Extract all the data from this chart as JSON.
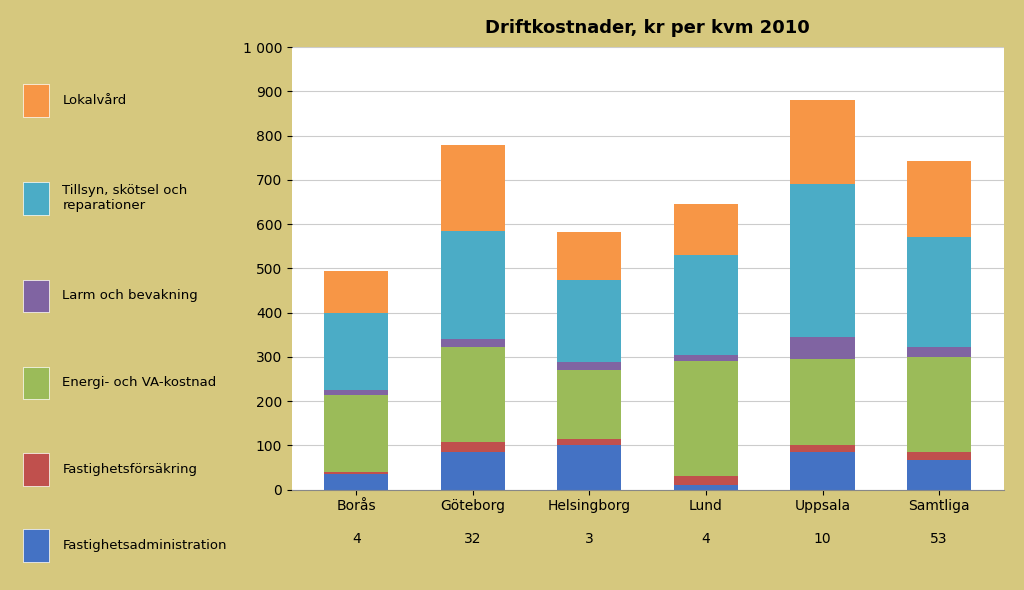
{
  "title": "Driftkostnader, kr per kvm 2010",
  "categories": [
    "Borås",
    "Göteborg",
    "Helsingborg",
    "Lund",
    "Uppsala",
    "Samtliga"
  ],
  "subcategories": [
    "4",
    "32",
    "3",
    "4",
    "10",
    "53"
  ],
  "series": {
    "Fastighetsadministration": [
      35,
      85,
      100,
      10,
      85,
      68
    ],
    "Fastighetsförsäkring": [
      5,
      22,
      15,
      20,
      15,
      18
    ],
    "Energi- och VA-kostnad": [
      175,
      215,
      155,
      260,
      195,
      215
    ],
    "Larm och bevakning": [
      10,
      18,
      18,
      15,
      50,
      22
    ],
    "Tillsyn, skötsel och reparationer": [
      175,
      245,
      185,
      225,
      345,
      247
    ],
    "Lokalvård": [
      95,
      195,
      110,
      115,
      190,
      172
    ]
  },
  "colors": {
    "Fastighetsadministration": "#4472C4",
    "Fastighetsförsäkring": "#C0504D",
    "Energi- och VA-kostnad": "#9BBB59",
    "Larm och bevakning": "#8064A2",
    "Tillsyn, skötsel och reparationer": "#4BACC6",
    "Lokalvård": "#F79646"
  },
  "background_color": "#D6C87E",
  "plot_background": "#FFFFFF",
  "legend_background": "#FFFFFF",
  "ylim": [
    0,
    1000
  ],
  "yticks": [
    0,
    100,
    200,
    300,
    400,
    500,
    600,
    700,
    800,
    900,
    1000
  ],
  "legend_order": [
    "Lokalvård",
    "Tillsyn, skötsel och\nreparationer",
    "Larm och bevakning",
    "Energi- och VA-kostnad",
    "Fastighetsförsäkring",
    "Fastighetsadministration"
  ],
  "legend_colors_order": [
    "Lokalvård",
    "Tillsyn, skötsel och reparationer",
    "Larm och bevakning",
    "Energi- och VA-kostnad",
    "Fastighetsförsäkring",
    "Fastighetsadministration"
  ]
}
